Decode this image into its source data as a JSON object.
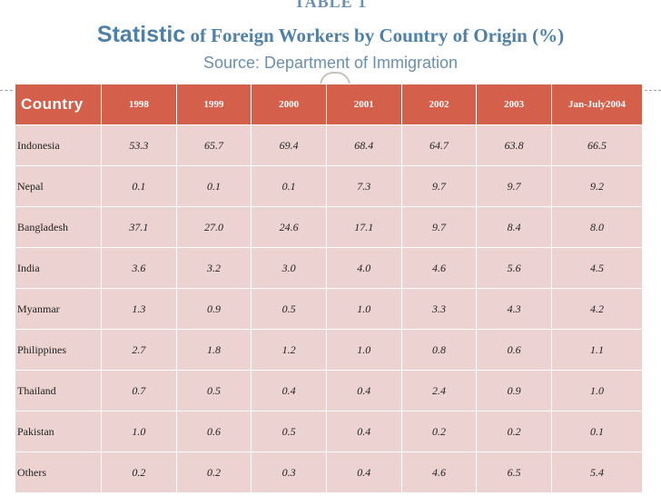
{
  "header": {
    "kicker": "TABLE 1",
    "title_main": "Statistic",
    "title_rest": " of Foreign Workers by Country of Origin (%)",
    "subtitle": "Source: Department of Immigration"
  },
  "table": {
    "country_header": "Country",
    "columns": [
      "1998",
      "1999",
      "2000",
      "2001",
      "2002",
      "2003",
      "Jan-July2004"
    ],
    "rows": [
      {
        "country": "Indonesia",
        "values": [
          "53.3",
          "65.7",
          "69.4",
          "68.4",
          "64.7",
          "63.8",
          "66.5"
        ]
      },
      {
        "country": "Nepal",
        "values": [
          "0.1",
          "0.1",
          "0.1",
          "7.3",
          "9.7",
          "9.7",
          "9.2"
        ]
      },
      {
        "country": "Bangladesh",
        "values": [
          "37.1",
          "27.0",
          "24.6",
          "17.1",
          "9.7",
          "8.4",
          "8.0"
        ]
      },
      {
        "country": "India",
        "values": [
          "3.6",
          "3.2",
          "3.0",
          "4.0",
          "4.6",
          "5.6",
          "4.5"
        ]
      },
      {
        "country": "Myanmar",
        "values": [
          "1.3",
          "0.9",
          "0.5",
          "1.0",
          "3.3",
          "4.3",
          "4.2"
        ]
      },
      {
        "country": "Philippines",
        "values": [
          "2.7",
          "1.8",
          "1.2",
          "1.0",
          "0.8",
          "0.6",
          "1.1"
        ]
      },
      {
        "country": "Thailand",
        "values": [
          "0.7",
          "0.5",
          "0.4",
          "0.4",
          "2.4",
          "0.9",
          "1.0"
        ]
      },
      {
        "country": "Pakistan",
        "values": [
          "1.0",
          "0.6",
          "0.5",
          "0.4",
          "0.2",
          "0.2",
          "0.1"
        ]
      },
      {
        "country": "Others",
        "values": [
          "0.2",
          "0.2",
          "0.3",
          "0.4",
          "4.6",
          "6.5",
          "5.4"
        ]
      }
    ]
  }
}
